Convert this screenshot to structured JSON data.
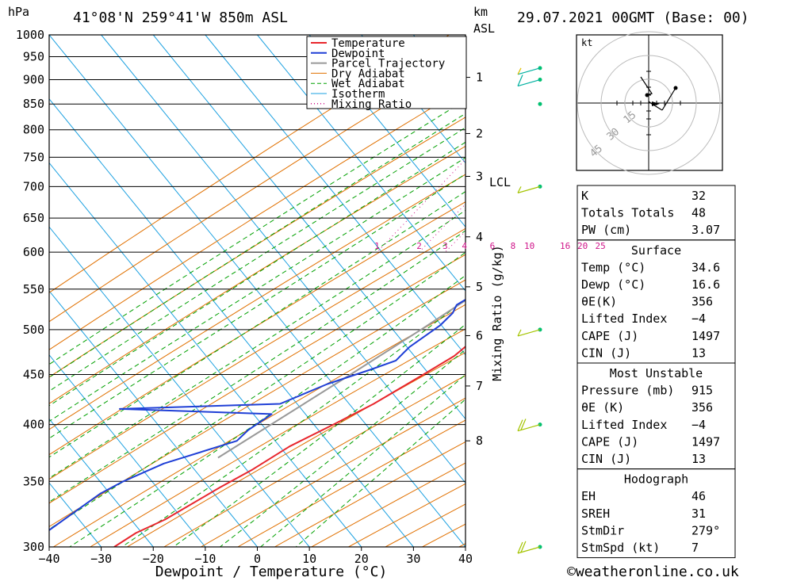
{
  "header": {
    "pressure_unit": "hPa",
    "location": "41°08'N  259°41'W  850m  ASL",
    "km_label": "km",
    "asl_label": "ASL",
    "datetime": "29.07.2021  00GMT  (Base: 00)"
  },
  "colors": {
    "temperature": "#e8262c",
    "dewpoint": "#1f3fd6",
    "parcel": "#999999",
    "dry_adiabat": "#e07000",
    "wet_adiabat": "#00a000",
    "isotherm": "#1aa0e0",
    "mixing_ratio": "#d0158a",
    "wind": "#a4c400"
  },
  "chart_data": {
    "type": "line",
    "xlabel": "Dewpoint / Temperature (°C)",
    "ylabel": "hPa",
    "xlim": [
      -40,
      40
    ],
    "x_ticks": [
      -40,
      -30,
      -20,
      -10,
      0,
      10,
      20,
      30,
      40
    ],
    "x_tick_labels": [
      "−40",
      "−30",
      "−20",
      "−10",
      "0",
      "10",
      "20",
      "30",
      "40"
    ],
    "y_ticks": [
      300,
      350,
      400,
      450,
      500,
      550,
      600,
      650,
      700,
      750,
      800,
      850,
      900,
      950,
      1000
    ],
    "y_tick_labels": [
      "300",
      "350",
      "400",
      "450",
      "500",
      "550",
      "600",
      "650",
      "700",
      "750",
      "800",
      "850",
      "900",
      "950",
      "1000"
    ],
    "km_ticks": [
      {
        "p": 905,
        "label": "1"
      },
      {
        "p": 793,
        "label": "2"
      },
      {
        "p": 717,
        "label": "3"
      },
      {
        "p": 622,
        "label": "4"
      },
      {
        "p": 553,
        "label": "5"
      },
      {
        "p": 493,
        "label": "6"
      },
      {
        "p": 438,
        "label": "7"
      },
      {
        "p": 385,
        "label": "8"
      }
    ],
    "lcl_label": "LCL",
    "mixing_ratio_axis_label": "Mixing Ratio (g/kg)",
    "mixing_ratio_labels": [
      "1",
      "2",
      "3",
      "4",
      "6",
      "8",
      "10",
      "16",
      "20",
      "25"
    ],
    "mixing_ratio_values": [
      1,
      2,
      3,
      4,
      6,
      8,
      10,
      16,
      20,
      25
    ],
    "legend_position": "top-right",
    "legend": [
      "Temperature",
      "Dewpoint",
      "Parcel Trajectory",
      "Dry Adiabat",
      "Wet Adiabat",
      "Isotherm",
      "Mixing Ratio"
    ],
    "series": [
      {
        "name": "Temperature",
        "points": [
          [
            920,
            34.6
          ],
          [
            900,
            33.8
          ],
          [
            850,
            30.8
          ],
          [
            800,
            27.6
          ],
          [
            750,
            24.3
          ],
          [
            700,
            21.4
          ],
          [
            690,
            21.2
          ],
          [
            670,
            20.6
          ],
          [
            650,
            20.0
          ],
          [
            600,
            18.0
          ],
          [
            570,
            15.5
          ],
          [
            550,
            13.5
          ],
          [
            500,
            10.0
          ],
          [
            470,
            8.0
          ],
          [
            450,
            5.0
          ],
          [
            420,
            0.0
          ],
          [
            400,
            -4.5
          ],
          [
            380,
            -9.5
          ],
          [
            360,
            -13.0
          ],
          [
            345,
            -16.5
          ],
          [
            320,
            -22.0
          ],
          [
            310,
            -25.5
          ],
          [
            300,
            -27.5
          ]
        ]
      },
      {
        "name": "Dewpoint",
        "points": [
          [
            920,
            16.6
          ],
          [
            910,
            15.0
          ],
          [
            880,
            15.0
          ],
          [
            850,
            14.2
          ],
          [
            800,
            13.5
          ],
          [
            750,
            12.8
          ],
          [
            720,
            12.8
          ],
          [
            700,
            11.0
          ],
          [
            680,
            5.0
          ],
          [
            670,
            1.0
          ],
          [
            655,
            1.5
          ],
          [
            645,
            10.5
          ],
          [
            630,
            5.0
          ],
          [
            615,
            0.5
          ],
          [
            600,
            0.5
          ],
          [
            590,
            -0.5
          ],
          [
            580,
            1.0
          ],
          [
            570,
            0.5
          ],
          [
            560,
            0.5
          ],
          [
            545,
            2.5
          ],
          [
            530,
            0.5
          ],
          [
            520,
            1.0
          ],
          [
            505,
            0.5
          ],
          [
            480,
            -2.0
          ],
          [
            465,
            -2.5
          ],
          [
            455,
            -6.0
          ],
          [
            440,
            -12.0
          ],
          [
            420,
            -18.0
          ],
          [
            415,
            -48.0
          ],
          [
            410,
            -18.0
          ],
          [
            395,
            -20.0
          ],
          [
            385,
            -20.5
          ],
          [
            365,
            -31.0
          ],
          [
            350,
            -36.0
          ],
          [
            340,
            -38.5
          ],
          [
            300,
            -44.5
          ]
        ]
      },
      {
        "name": "Parcel Trajectory",
        "points": [
          [
            920,
            34.6
          ],
          [
            850,
            27.5
          ],
          [
            800,
            22.5
          ],
          [
            760,
            18.3
          ],
          [
            720,
            16.5
          ],
          [
            700,
            15.2
          ],
          [
            650,
            11.5
          ],
          [
            600,
            7.5
          ],
          [
            550,
            3.0
          ],
          [
            500,
            -2.5
          ],
          [
            450,
            -9.0
          ],
          [
            400,
            -16.5
          ],
          [
            370,
            -21.5
          ]
        ]
      }
    ],
    "wind_barbs": [
      {
        "p": 300,
        "speed_kt": 20
      },
      {
        "p": 400,
        "speed_kt": 20
      },
      {
        "p": 500,
        "speed_kt": 5
      },
      {
        "p": 700,
        "speed_kt": 5
      },
      {
        "p": 850,
        "speed_kt": 0
      },
      {
        "p": 900,
        "speed_kt": 10
      },
      {
        "p": 925,
        "speed_kt": 5
      }
    ]
  },
  "hodograph": {
    "unit": "kt",
    "ring_labels": [
      "15",
      "30",
      "45"
    ]
  },
  "indices": {
    "general": [
      {
        "label": "K",
        "value": "32"
      },
      {
        "label": "Totals Totals",
        "value": "48"
      },
      {
        "label": "PW (cm)",
        "value": "3.07"
      }
    ],
    "surface": {
      "title": "Surface",
      "rows": [
        {
          "label": "Temp (°C)",
          "value": "34.6"
        },
        {
          "label": "Dewp (°C)",
          "value": "16.6"
        },
        {
          "label": "θE(K)",
          "value": "356"
        },
        {
          "label": "Lifted Index",
          "value": "−4"
        },
        {
          "label": "CAPE (J)",
          "value": "1497"
        },
        {
          "label": "CIN (J)",
          "value": "13"
        }
      ]
    },
    "most_unstable": {
      "title": "Most Unstable",
      "rows": [
        {
          "label": "Pressure (mb)",
          "value": "915"
        },
        {
          "label": "θE (K)",
          "value": "356"
        },
        {
          "label": "Lifted Index",
          "value": "−4"
        },
        {
          "label": "CAPE (J)",
          "value": "1497"
        },
        {
          "label": "CIN (J)",
          "value": "13"
        }
      ]
    },
    "hodograph_box": {
      "title": "Hodograph",
      "rows": [
        {
          "label": "EH",
          "value": "46"
        },
        {
          "label": "SREH",
          "value": "31"
        },
        {
          "label": "StmDir",
          "value": "279°"
        },
        {
          "label": "StmSpd (kt)",
          "value": "7"
        }
      ]
    }
  },
  "footer": {
    "copyright": "©weatheronline.co.uk"
  }
}
